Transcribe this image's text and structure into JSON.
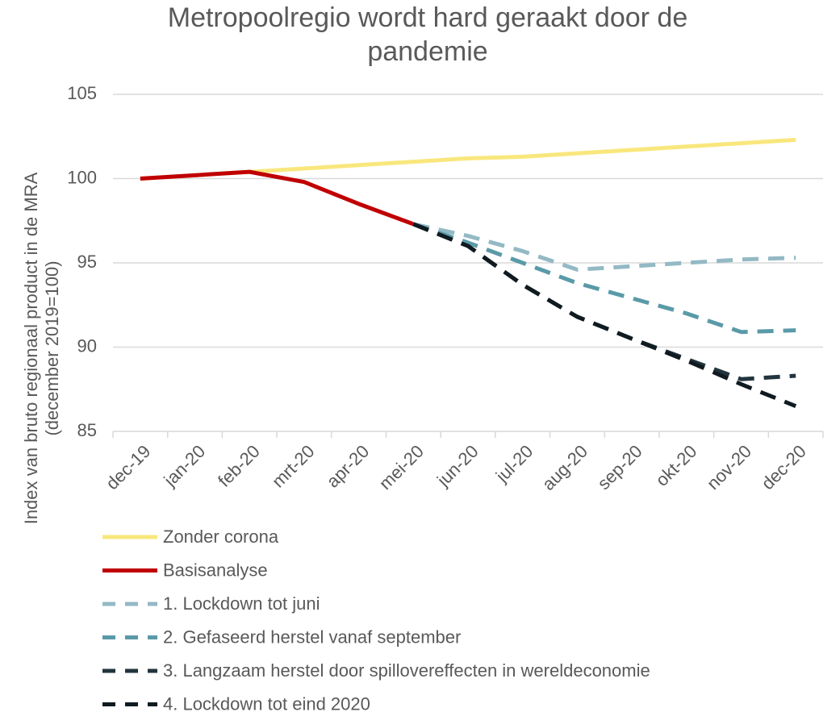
{
  "chart_data": {
    "type": "line",
    "title": "Metropoolregio wordt hard geraakt door de pandemie",
    "y_label": "Index van bruto regionaal product in de MRA (december 2019=100)",
    "categories": [
      "dec-19",
      "jan-20",
      "feb-20",
      "mrt-20",
      "apr-20",
      "mei-20",
      "jun-20",
      "jul-20",
      "aug-20",
      "sep-20",
      "okt-20",
      "nov-20",
      "dec-20"
    ],
    "ylim": [
      85,
      105
    ],
    "yticks": [
      85,
      90,
      95,
      100,
      105
    ],
    "grid": true,
    "series": [
      {
        "name": "Zonder corona",
        "color": "#f9e77d",
        "dashed": false,
        "values": [
          100,
          100.2,
          100.4,
          100.6,
          100.8,
          101.0,
          101.2,
          101.3,
          101.5,
          101.7,
          101.9,
          102.1,
          102.3
        ]
      },
      {
        "name": "Basisanalyse",
        "color": "#c00000",
        "dashed": false,
        "values": [
          100,
          100.2,
          100.4,
          99.8,
          98.5,
          97.3,
          null,
          null,
          null,
          null,
          null,
          null,
          null
        ]
      },
      {
        "name": "1. Lockdown tot juni",
        "color": "#93b9c5",
        "dashed": true,
        "values": [
          null,
          null,
          null,
          null,
          null,
          97.3,
          96.6,
          95.7,
          94.6,
          94.8,
          95.0,
          95.2,
          95.3
        ]
      },
      {
        "name": "2. Gefaseerd herstel vanaf september",
        "color": "#5a9aa8",
        "dashed": true,
        "values": [
          null,
          null,
          null,
          null,
          null,
          97.3,
          96.2,
          95.0,
          93.8,
          92.9,
          92.0,
          90.9,
          91.0
        ]
      },
      {
        "name": "3. Langzaam herstel door spillovereffecten in wereldeconomie",
        "color": "#22343d",
        "dashed": true,
        "values": [
          null,
          null,
          null,
          null,
          null,
          97.3,
          96.0,
          93.7,
          91.8,
          90.5,
          89.3,
          88.1,
          88.3
        ]
      },
      {
        "name": "4. Lockdown tot eind 2020",
        "color": "#101b21",
        "dashed": true,
        "values": [
          null,
          null,
          null,
          null,
          null,
          97.3,
          96.0,
          93.7,
          91.8,
          90.5,
          89.2,
          87.8,
          86.5
        ]
      }
    ]
  }
}
